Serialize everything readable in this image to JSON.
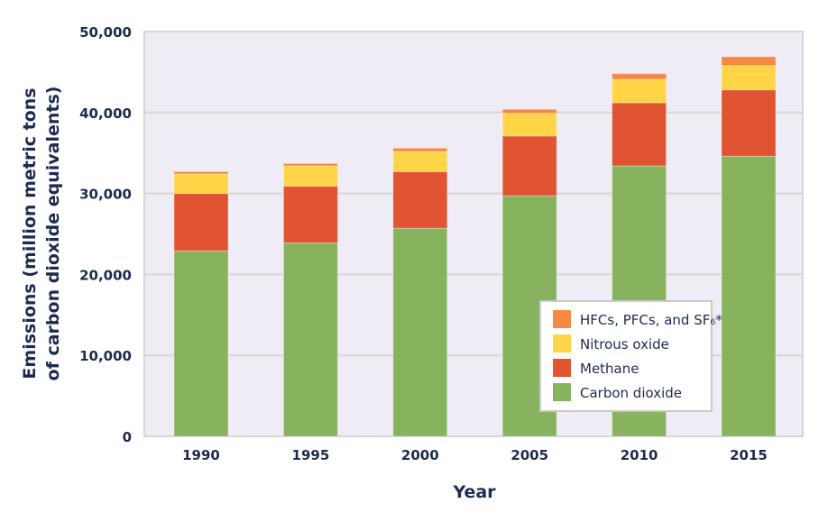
{
  "chart_data": {
    "type": "bar",
    "stacked": true,
    "title": "",
    "xlabel": "Year",
    "ylabel_line1": "Emissions (million metric tons",
    "ylabel_line2": "of carbon dioxide equivalents)",
    "categories": [
      "1990",
      "1995",
      "2000",
      "2005",
      "2010",
      "2015"
    ],
    "ylim": [
      0,
      50000
    ],
    "yticks": [
      0,
      10000,
      20000,
      30000,
      40000,
      50000
    ],
    "ytick_labels": [
      "0",
      "10,000",
      "20,000",
      "30,000",
      "40,000",
      "50,000"
    ],
    "grid": true,
    "legend_position": "bottom-right",
    "series": [
      {
        "name": "Carbon dioxide",
        "color": "#88b35e",
        "values": [
          22900,
          23900,
          25700,
          29700,
          33400,
          34600
        ]
      },
      {
        "name": "Methane",
        "color": "#e05431",
        "values": [
          7100,
          7000,
          7000,
          7400,
          7800,
          8200
        ]
      },
      {
        "name": "Nitrous oxide",
        "color": "#ffd547",
        "values": [
          2400,
          2500,
          2500,
          2800,
          2900,
          3000
        ]
      },
      {
        "name": "HFCs, PFCs, and SF₆*",
        "color": "#f58842",
        "values": [
          300,
          300,
          400,
          500,
          700,
          1100
        ]
      }
    ],
    "background_color": "#efecf5"
  }
}
